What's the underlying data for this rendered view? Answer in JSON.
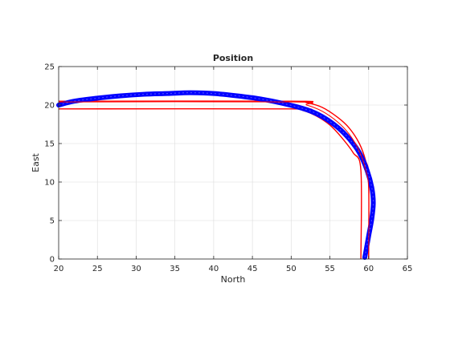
{
  "chart_data": {
    "type": "line",
    "title": "Position",
    "xlabel": "North",
    "ylabel": "East",
    "xlim": [
      20,
      65
    ],
    "ylim": [
      0,
      25
    ],
    "xticks": [
      "20",
      "25",
      "30",
      "35",
      "40",
      "45",
      "50",
      "55",
      "60",
      "65"
    ],
    "yticks": [
      "0",
      "5",
      "10",
      "15",
      "20",
      "25"
    ],
    "grid": true,
    "legend": "none",
    "series": [
      {
        "color": "#ff0000",
        "style": "solid",
        "role": "boundary-outer",
        "points": [
          [
            20,
            20.5
          ],
          [
            50,
            20.5
          ],
          [
            52,
            20.3
          ],
          [
            54,
            19.7
          ],
          [
            56,
            18.4
          ],
          [
            57.5,
            17.0
          ],
          [
            58.8,
            15.0
          ],
          [
            59.6,
            12.8
          ],
          [
            60,
            10.5
          ],
          [
            60,
            0
          ]
        ]
      },
      {
        "color": "#ff0000",
        "style": "solid",
        "role": "boundary-inner",
        "points": [
          [
            20,
            19.5
          ],
          [
            50,
            19.5
          ],
          [
            51.5,
            19.3
          ],
          [
            53.2,
            18.6
          ],
          [
            55,
            17.4
          ],
          [
            56.5,
            15.8
          ],
          [
            58,
            13.8
          ],
          [
            59,
            11.5
          ],
          [
            59,
            0
          ]
        ]
      },
      {
        "color": "#0000ff",
        "style": "thick-markers",
        "role": "trajectory",
        "points": [
          [
            20,
            20.0
          ],
          [
            22,
            20.5
          ],
          [
            25,
            20.9
          ],
          [
            28,
            21.2
          ],
          [
            31,
            21.4
          ],
          [
            34,
            21.5
          ],
          [
            37,
            21.6
          ],
          [
            40,
            21.5
          ],
          [
            43,
            21.2
          ],
          [
            46,
            20.8
          ],
          [
            49,
            20.2
          ],
          [
            52,
            19.4
          ],
          [
            54,
            18.5
          ],
          [
            56,
            17.1
          ],
          [
            57.5,
            15.6
          ],
          [
            58.8,
            13.8
          ],
          [
            59.8,
            11.5
          ],
          [
            60.4,
            9.3
          ],
          [
            60.6,
            7.3
          ],
          [
            60.4,
            5.2
          ],
          [
            60.0,
            3.0
          ],
          [
            59.7,
            1.3
          ],
          [
            59.5,
            0.2
          ]
        ]
      },
      {
        "color": "#ff0000",
        "style": "solid-thin",
        "role": "reference",
        "points": [
          [
            20,
            20.4
          ],
          [
            50,
            20.4
          ],
          [
            52,
            20.0
          ],
          [
            54,
            19.2
          ],
          [
            56,
            17.8
          ],
          [
            57.5,
            16.2
          ],
          [
            58.8,
            14.0
          ],
          [
            59.6,
            11.6
          ],
          [
            60,
            9.0
          ],
          [
            60,
            0
          ]
        ]
      }
    ]
  }
}
